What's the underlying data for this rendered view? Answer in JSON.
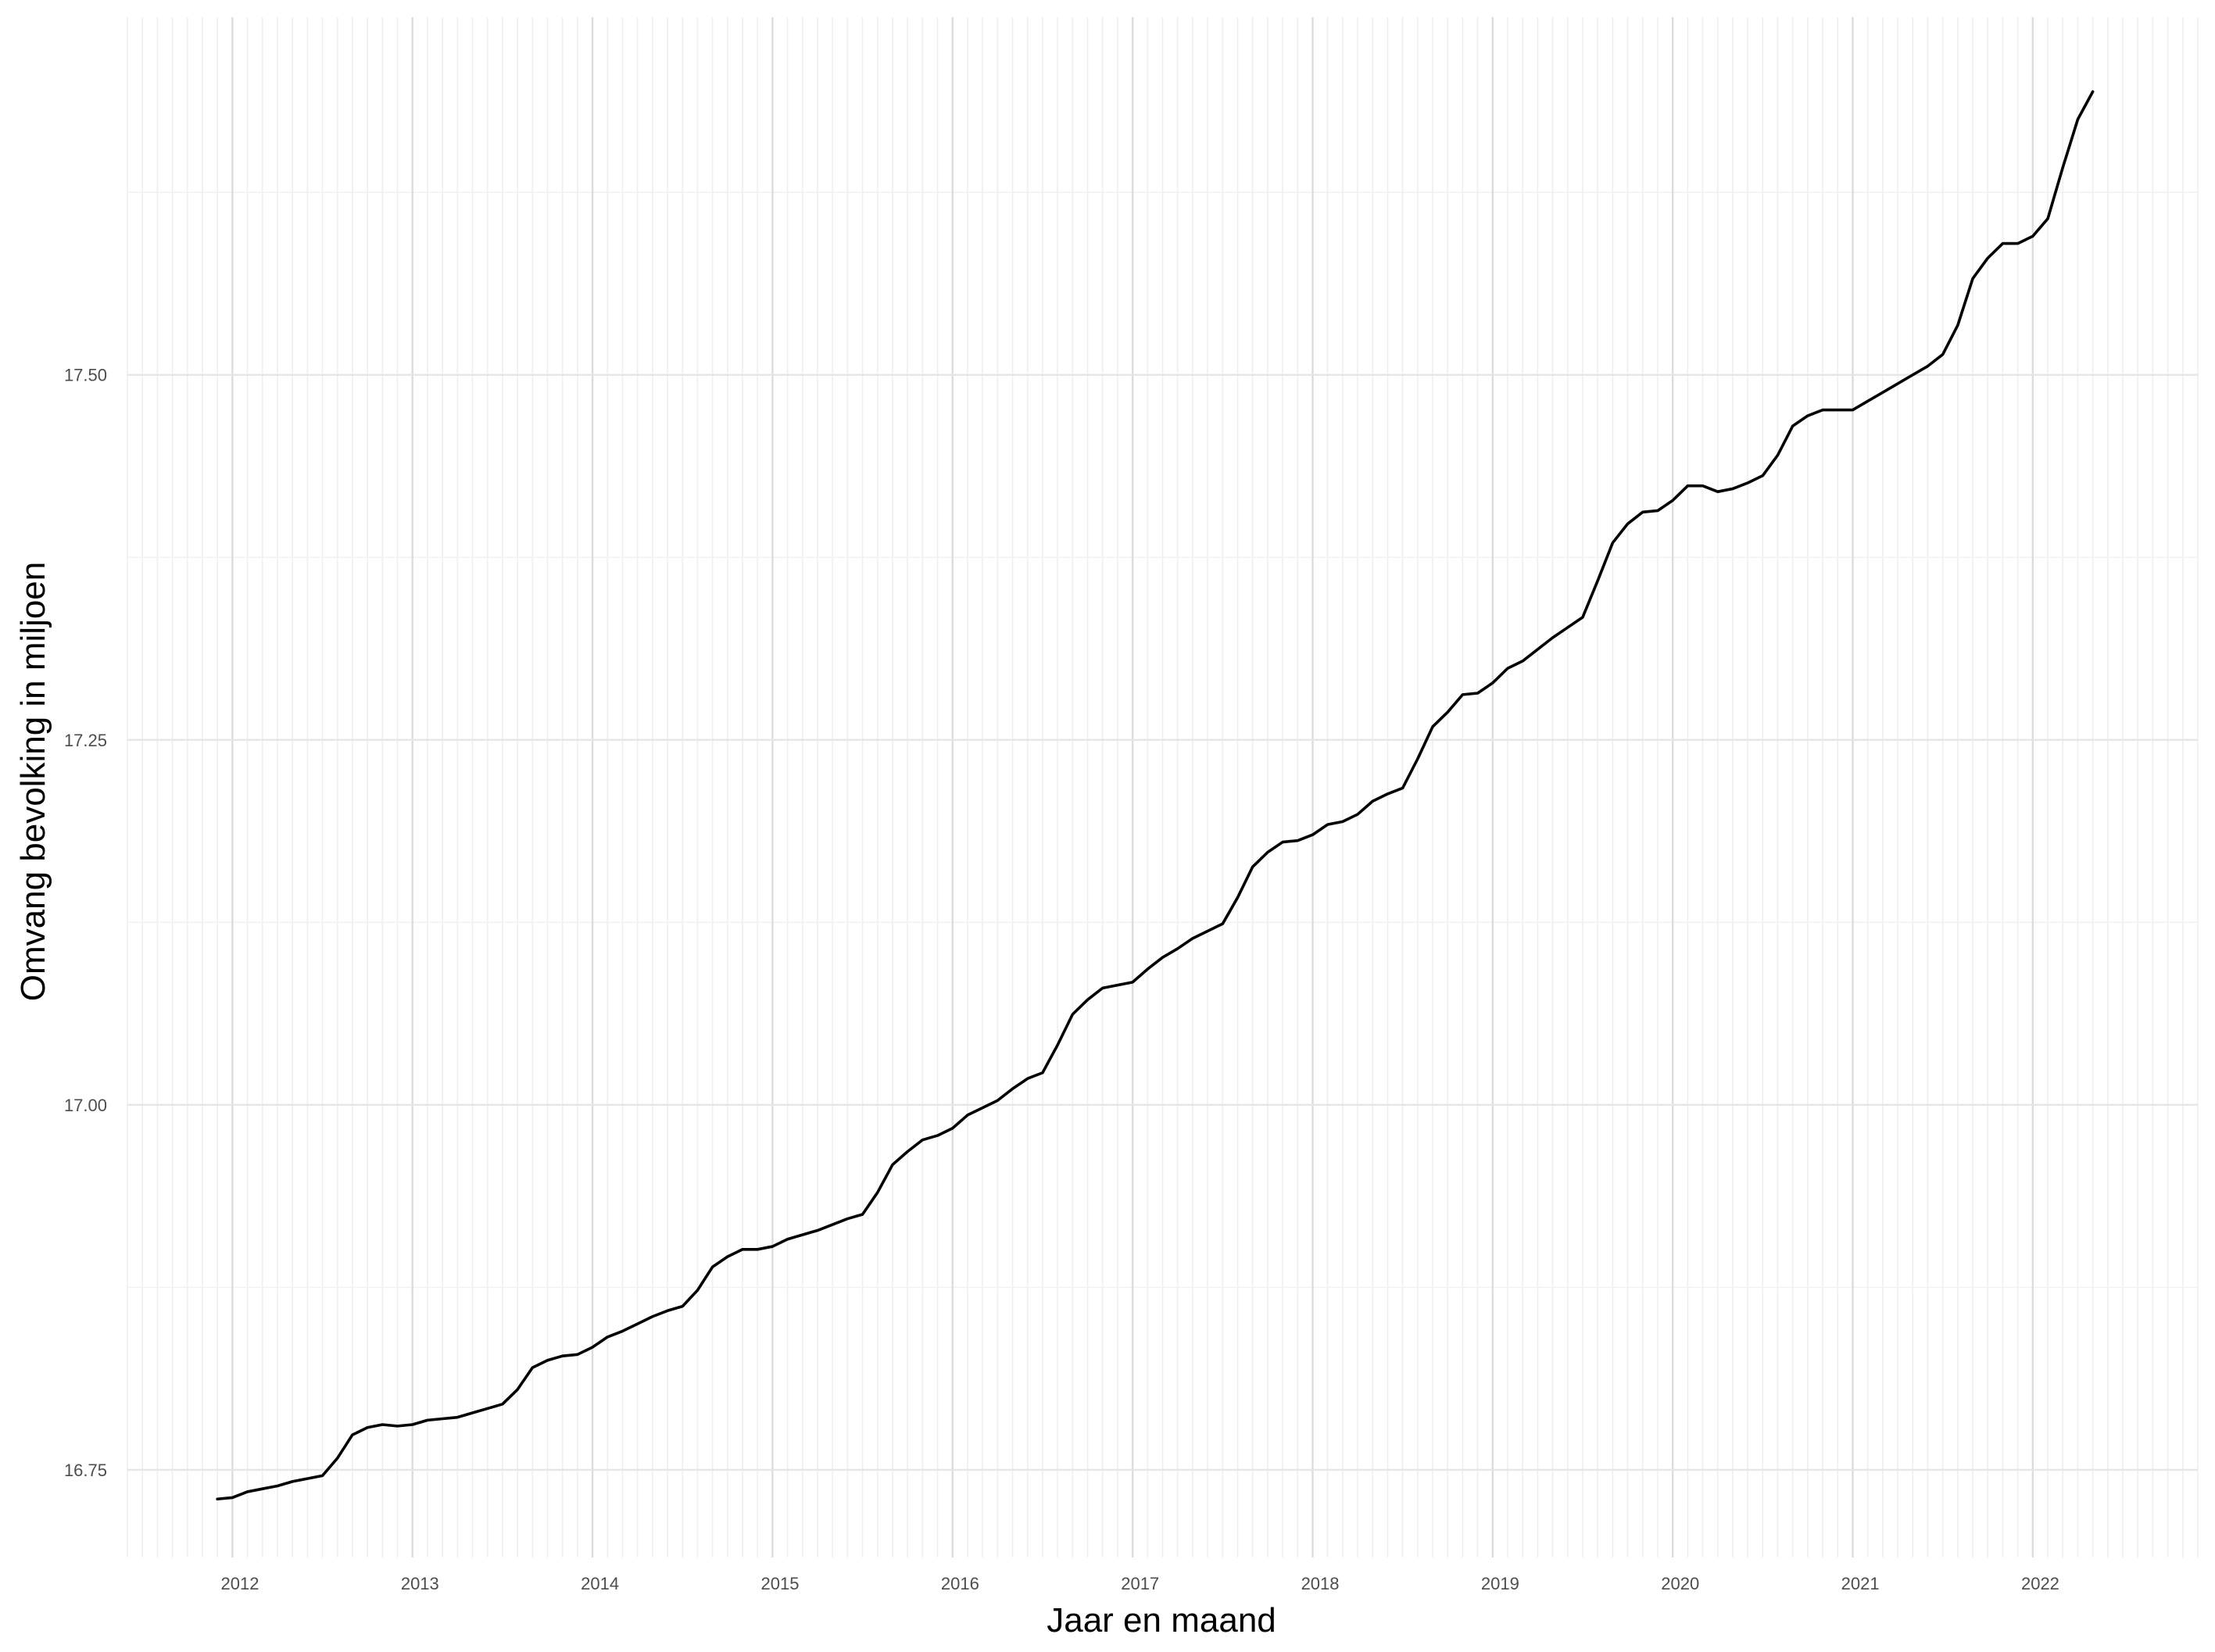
{
  "chart_data": {
    "type": "line",
    "xlabel": "Jaar en maand",
    "ylabel": "Omvang bevolking in miljoen",
    "x_ticks": [
      "2012",
      "2013",
      "2014",
      "2015",
      "2016",
      "2017",
      "2018",
      "2019",
      "2020",
      "2021",
      "2022"
    ],
    "y_ticks": [
      "16.75",
      "17.00",
      "17.25",
      "17.50"
    ],
    "xlim": [
      "2011-06",
      "2022-12"
    ],
    "ylim": [
      16.69,
      17.745
    ],
    "grid": true,
    "legend": "none",
    "line_color": "#000000",
    "series": [
      {
        "start": "2011-12",
        "values": [
          16.73,
          16.731,
          16.735,
          16.737,
          16.739,
          16.742,
          16.744,
          16.746,
          16.758,
          16.774,
          16.779,
          16.781,
          16.78,
          16.781,
          16.784,
          16.785,
          16.786,
          16.789,
          16.792,
          16.795,
          16.805,
          16.82,
          16.825,
          16.828,
          16.829,
          16.834,
          16.841,
          16.845,
          16.85,
          16.855,
          16.859,
          16.862,
          16.873,
          16.889,
          16.896,
          16.901,
          16.901,
          16.903,
          16.908,
          16.911,
          16.914,
          16.918,
          16.922,
          16.925,
          16.94,
          16.959,
          16.968,
          16.976,
          16.979,
          16.984,
          16.993,
          16.998,
          17.003,
          17.011,
          17.018,
          17.022,
          17.041,
          17.062,
          17.072,
          17.08,
          17.082,
          17.084,
          17.093,
          17.101,
          17.107,
          17.114,
          17.119,
          17.124,
          17.142,
          17.163,
          17.173,
          17.18,
          17.181,
          17.185,
          17.192,
          17.194,
          17.199,
          17.208,
          17.213,
          17.217,
          17.237,
          17.259,
          17.269,
          17.281,
          17.282,
          17.289,
          17.299,
          17.304,
          17.312,
          17.32,
          17.327,
          17.334,
          17.359,
          17.385,
          17.398,
          17.406,
          17.407,
          17.414,
          17.424,
          17.424,
          17.42,
          17.422,
          17.426,
          17.431,
          17.445,
          17.465,
          17.472,
          17.476,
          17.476,
          17.476,
          17.482,
          17.488,
          17.494,
          17.5,
          17.506,
          17.514,
          17.534,
          17.566,
          17.58,
          17.59,
          17.59,
          17.595,
          17.607,
          17.642,
          17.675,
          17.694
        ]
      }
    ]
  }
}
